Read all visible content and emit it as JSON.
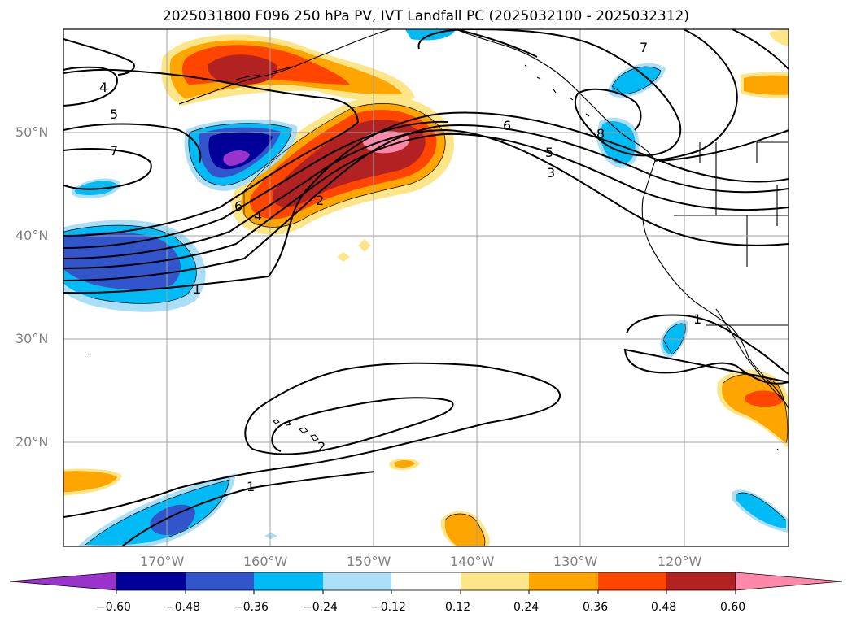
{
  "title": "2025031800 F096 250 hPa PV, IVT Landfall PC (2025032100 - 2025032312)",
  "latitude_labels": [
    "50°N",
    "40°N",
    "30°N",
    "20°N"
  ],
  "longitude_labels": [
    "170°W",
    "160°W",
    "150°W",
    "140°W",
    "130°W",
    "120°W"
  ],
  "contour_labels": [
    "4",
    "5",
    "7",
    "6",
    "4",
    "2",
    "6",
    "5",
    "3",
    "7",
    "8",
    "1",
    "1",
    "2",
    "1"
  ],
  "colorbar": {
    "tick_labels": [
      "−0.60",
      "−0.48",
      "−0.36",
      "−0.24",
      "−0.12",
      "0.12",
      "0.24",
      "0.36",
      "0.48",
      "0.60"
    ],
    "colors": [
      "#9933cc",
      "#000099",
      "#3355cc",
      "#00bbf5",
      "#aadff7",
      "#ffffff",
      "#fde68a",
      "#ffa500",
      "#ff4500",
      "#b22222",
      "#ff88aa"
    ],
    "extend": "both"
  }
}
